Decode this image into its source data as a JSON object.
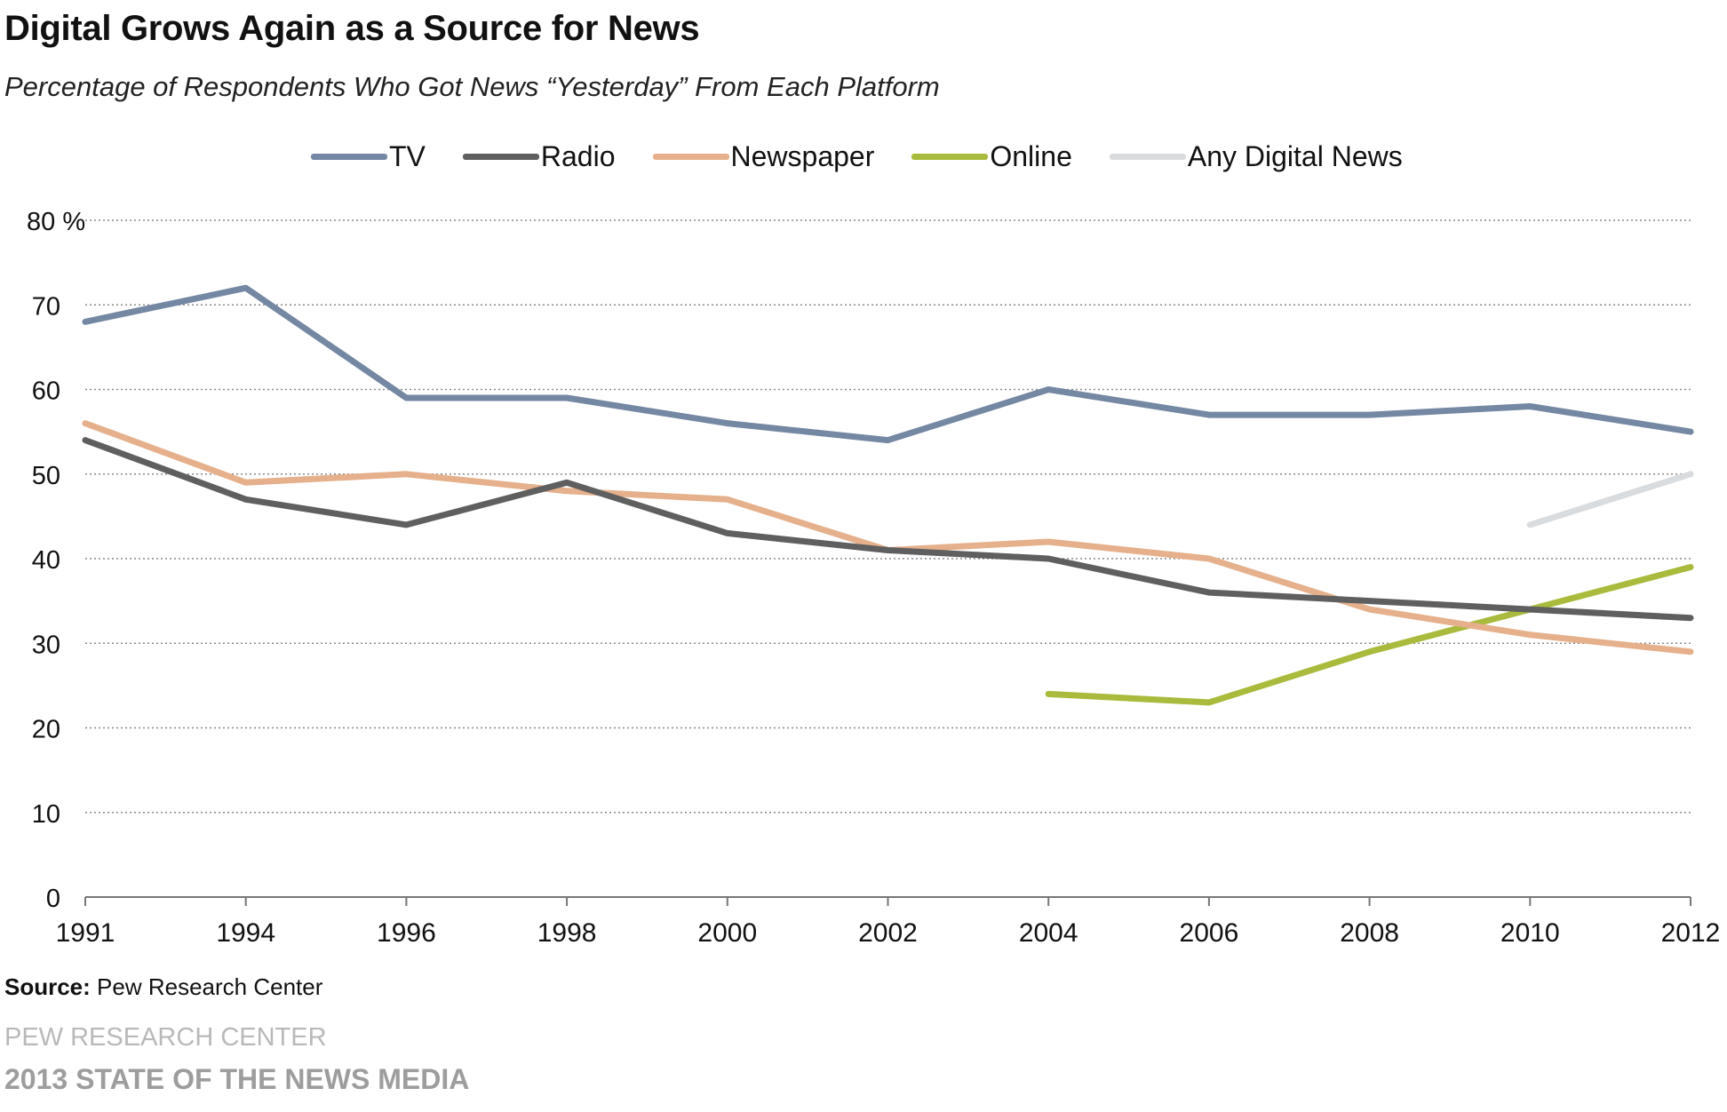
{
  "header": {
    "title": "Digital Grows Again as a Source for News",
    "subtitle": "Percentage of Respondents Who Got News “Yesterday” From Each Platform"
  },
  "footer": {
    "source_label": "Source:",
    "source_value": "Pew Research Center",
    "org": "PEW RESEARCH CENTER",
    "report": "2013 STATE OF THE NEWS MEDIA"
  },
  "chart_data": {
    "type": "line",
    "title": "Digital Grows Again as a Source for News",
    "subtitle": "Percentage of Respondents Who Got News “Yesterday” From Each Platform",
    "x": [
      "1991",
      "1994",
      "1996",
      "1998",
      "2000",
      "2002",
      "2004",
      "2006",
      "2008",
      "2010",
      "2012"
    ],
    "y_ticks": [
      "0",
      "10",
      "20",
      "30",
      "40",
      "50",
      "60",
      "70",
      "80 %"
    ],
    "ylim": [
      0,
      80
    ],
    "grid": "horizontal dotted",
    "legend_position": "top",
    "series": [
      {
        "name": "TV",
        "color": "#7487a3",
        "values": [
          68,
          72,
          59,
          59,
          56,
          54,
          60,
          57,
          57,
          58,
          55
        ]
      },
      {
        "name": "Radio",
        "color": "#5f5f5f",
        "values": [
          54,
          47,
          44,
          49,
          43,
          41,
          40,
          36,
          35,
          34,
          33
        ]
      },
      {
        "name": "Newspaper",
        "color": "#e5b08b",
        "values": [
          56,
          49,
          50,
          48,
          47,
          41,
          42,
          40,
          34,
          31,
          29
        ]
      },
      {
        "name": "Online",
        "color": "#a9ba3c",
        "values": [
          null,
          null,
          null,
          null,
          null,
          null,
          24,
          23,
          29,
          34,
          39
        ]
      },
      {
        "name": "Any Digital News",
        "color": "#d9dcdf",
        "values": [
          null,
          null,
          null,
          null,
          null,
          null,
          null,
          null,
          null,
          44,
          50
        ]
      }
    ]
  }
}
